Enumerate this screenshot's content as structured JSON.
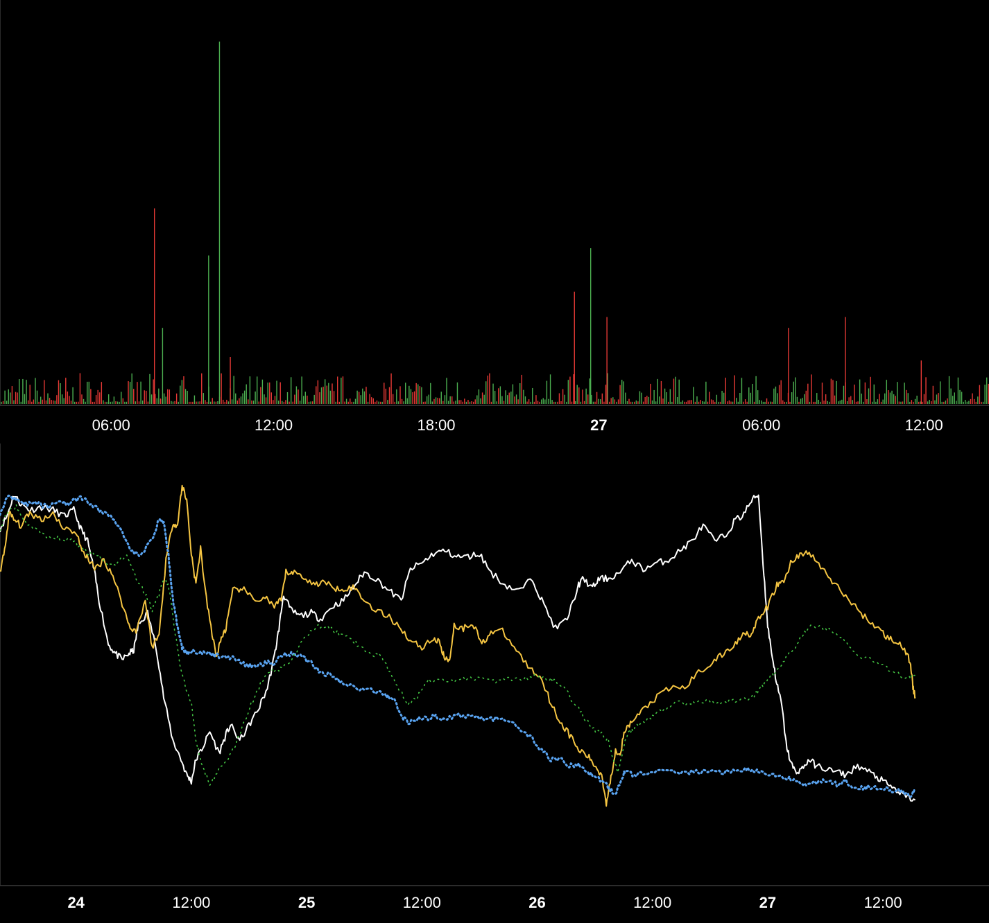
{
  "chart_data": [
    {
      "type": "bar",
      "title": "",
      "xlabel": "",
      "ylabel": "",
      "x_ticks": [
        {
          "label": "06:00",
          "major": false,
          "hours": 6
        },
        {
          "label": "12:00",
          "major": false,
          "hours": 12
        },
        {
          "label": "18:00",
          "major": false,
          "hours": 18
        },
        {
          "label": "27",
          "major": true,
          "hours": 24
        },
        {
          "label": "06:00",
          "major": false,
          "hours": 30
        },
        {
          "label": "12:00",
          "major": false,
          "hours": 36
        }
      ],
      "x_range_hours": [
        1.9,
        38.4
      ],
      "ylim": [
        0,
        100
      ],
      "grid": false,
      "colors": {
        "up": "#4caf50",
        "down": "#e53935"
      },
      "notable_bars": [
        {
          "hours": 7.6,
          "value": 54,
          "direction": "down"
        },
        {
          "hours": 7.9,
          "value": 21,
          "direction": "up"
        },
        {
          "hours": 9.6,
          "value": 41,
          "direction": "up"
        },
        {
          "hours": 10.0,
          "value": 100,
          "direction": "up"
        },
        {
          "hours": 10.4,
          "value": 13,
          "direction": "down"
        },
        {
          "hours": 23.1,
          "value": 31,
          "direction": "down"
        },
        {
          "hours": 23.7,
          "value": 43,
          "direction": "up"
        },
        {
          "hours": 24.3,
          "value": 24,
          "direction": "down"
        },
        {
          "hours": 31.0,
          "value": 21,
          "direction": "down"
        },
        {
          "hours": 33.1,
          "value": 24,
          "direction": "down"
        },
        {
          "hours": 35.9,
          "value": 12,
          "direction": "down"
        }
      ]
    },
    {
      "type": "line",
      "title": "",
      "xlabel": "",
      "ylabel": "",
      "x_ticks": [
        {
          "label": "24",
          "major": true,
          "days": 1
        },
        {
          "label": "12:00",
          "major": false,
          "days": 1.5
        },
        {
          "label": "25",
          "major": true,
          "days": 2
        },
        {
          "label": "12:00",
          "major": false,
          "days": 2.5
        },
        {
          "label": "26",
          "major": true,
          "days": 3
        },
        {
          "label": "12:00",
          "major": false,
          "days": 3.5
        },
        {
          "label": "27",
          "major": true,
          "days": 4
        },
        {
          "label": "12:00",
          "major": false,
          "days": 4.5
        }
      ],
      "x_range_days": [
        0.67,
        4.96
      ],
      "ylim": [
        0,
        100
      ],
      "grid": false,
      "series": [
        {
          "color": "#ffffff",
          "style": "solid",
          "x": [
            0.67,
            0.7,
            0.73,
            0.76,
            0.8,
            0.85,
            0.9,
            0.95,
            0.99,
            1.02,
            1.05,
            1.08,
            1.1,
            1.14,
            1.17,
            1.2,
            1.23,
            1.25,
            1.27,
            1.31,
            1.35,
            1.38,
            1.42,
            1.45,
            1.48,
            1.5,
            1.52,
            1.55,
            1.58,
            1.62,
            1.65,
            1.67,
            1.71,
            1.75,
            1.79,
            1.83,
            1.86,
            1.88,
            1.9,
            1.93,
            1.97,
            2.02,
            2.06,
            2.11,
            2.16,
            2.21,
            2.25,
            2.3,
            2.36,
            2.41,
            2.45,
            2.5,
            2.55,
            2.6,
            2.65,
            2.7,
            2.75,
            2.8,
            2.86,
            2.92,
            2.98,
            3.02,
            3.08,
            3.13,
            3.18,
            3.2,
            3.24,
            3.27,
            3.31,
            3.36,
            3.41,
            3.46,
            3.52,
            3.57,
            3.62,
            3.67,
            3.72,
            3.77,
            3.82,
            3.86,
            3.89,
            3.93,
            3.96,
            3.98,
            4.0,
            4.02,
            4.04,
            4.06,
            4.08,
            4.1,
            4.12,
            4.15,
            4.18,
            4.21,
            4.25,
            4.3,
            4.34,
            4.39,
            4.44,
            4.48,
            4.52,
            4.56,
            4.6,
            4.64
          ],
          "y": [
            86,
            90,
            97,
            94,
            92,
            93,
            92,
            90,
            92,
            86,
            82,
            72,
            63,
            49,
            46,
            44,
            46,
            47,
            55,
            59,
            47,
            32,
            18,
            13,
            7,
            5,
            12,
            16,
            21,
            14,
            20,
            23,
            18,
            23,
            28,
            35,
            45,
            54,
            65,
            60,
            58,
            59,
            57,
            61,
            63,
            68,
            72,
            70,
            66,
            63,
            73,
            75,
            78,
            79,
            77,
            77,
            78,
            72,
            68,
            66,
            70,
            63,
            54,
            57,
            68,
            70,
            67,
            70,
            70,
            72,
            76,
            73,
            75,
            76,
            79,
            82,
            87,
            82,
            84,
            89,
            90,
            95,
            97,
            75,
            55,
            45,
            36,
            30,
            17,
            11,
            8,
            9,
            12,
            10,
            9,
            8,
            7,
            10,
            8,
            6,
            4,
            2,
            0,
            -1
          ]
        },
        {
          "color": "#f5c542",
          "style": "solid",
          "x": [
            0.67,
            0.69,
            0.71,
            0.73,
            0.76,
            0.8,
            0.85,
            0.9,
            0.95,
            1.0,
            1.03,
            1.05,
            1.08,
            1.12,
            1.16,
            1.2,
            1.23,
            1.26,
            1.3,
            1.33,
            1.36,
            1.39,
            1.42,
            1.44,
            1.46,
            1.48,
            1.5,
            1.52,
            1.54,
            1.56,
            1.59,
            1.61,
            1.63,
            1.65,
            1.68,
            1.72,
            1.77,
            1.82,
            1.86,
            1.89,
            1.91,
            1.94,
            1.98,
            2.03,
            2.07,
            2.12,
            2.16,
            2.21,
            2.25,
            2.3,
            2.35,
            2.4,
            2.45,
            2.5,
            2.55,
            2.58,
            2.6,
            2.62,
            2.64,
            2.68,
            2.72,
            2.76,
            2.8,
            2.85,
            2.91,
            2.97,
            3.02,
            3.06,
            3.1,
            3.14,
            3.18,
            3.22,
            3.25,
            3.28,
            3.3,
            3.32,
            3.34,
            3.36,
            3.38,
            3.41,
            3.46,
            3.52,
            3.58,
            3.64,
            3.7,
            3.76,
            3.81,
            3.86,
            3.9,
            3.93,
            3.96,
            4.0,
            4.04,
            4.07,
            4.1,
            4.14,
            4.18,
            4.23,
            4.28,
            4.33,
            4.38,
            4.43,
            4.48,
            4.52,
            4.56,
            4.6,
            4.62,
            4.63,
            4.64
          ],
          "y": [
            72,
            79,
            91,
            89,
            87,
            91,
            89,
            91,
            86,
            85,
            78,
            77,
            73,
            76,
            71,
            62,
            55,
            53,
            63,
            48,
            52,
            76,
            88,
            87,
            100,
            95,
            78,
            68,
            80,
            66,
            52,
            45,
            51,
            54,
            66,
            67,
            63,
            64,
            61,
            63,
            72,
            72,
            71,
            68,
            69,
            67,
            67,
            67,
            63,
            60,
            58,
            55,
            50,
            48,
            51,
            49,
            44,
            44,
            55,
            54,
            56,
            49,
            53,
            53,
            47,
            41,
            38,
            30,
            24,
            20,
            15,
            13,
            10,
            7,
            -2,
            6,
            15,
            14,
            21,
            24,
            28,
            32,
            35,
            35,
            40,
            43,
            46,
            49,
            53,
            52,
            57,
            61,
            68,
            69,
            75,
            78,
            78,
            74,
            69,
            65,
            61,
            57,
            54,
            51,
            50,
            46,
            43,
            35,
            32
          ]
        },
        {
          "color": "#59a3f0",
          "style": "dotted",
          "x": [
            0.67,
            0.7,
            0.74,
            0.78,
            0.83,
            0.88,
            0.93,
            0.97,
            1.02,
            1.06,
            1.1,
            1.15,
            1.2,
            1.24,
            1.28,
            1.33,
            1.36,
            1.38,
            1.4,
            1.42,
            1.44,
            1.46,
            1.48,
            1.5,
            1.54,
            1.58,
            1.62,
            1.66,
            1.7,
            1.74,
            1.78,
            1.82,
            1.86,
            1.9,
            1.94,
            1.98,
            2.02,
            2.06,
            2.11,
            2.16,
            2.22,
            2.28,
            2.34,
            2.38,
            2.41,
            2.44,
            2.48,
            2.52,
            2.56,
            2.6,
            2.66,
            2.72,
            2.78,
            2.84,
            2.9,
            2.96,
            3.02,
            3.06,
            3.1,
            3.14,
            3.18,
            3.22,
            3.26,
            3.3,
            3.32,
            3.34,
            3.36,
            3.38,
            3.42,
            3.48,
            3.54,
            3.6,
            3.66,
            3.72,
            3.78,
            3.84,
            3.9,
            3.94,
            3.98,
            4.02,
            4.06,
            4.1,
            4.14,
            4.18,
            4.22,
            4.26,
            4.3,
            4.34,
            4.38,
            4.42,
            4.46,
            4.5,
            4.54,
            4.58,
            4.62,
            4.64
          ],
          "y": [
            91,
            96,
            96,
            94,
            94,
            93,
            95,
            94,
            96,
            94,
            92,
            90,
            85,
            79,
            77,
            83,
            89,
            88,
            78,
            63,
            55,
            48,
            46,
            47,
            46,
            46,
            45,
            45,
            44,
            42,
            42,
            43,
            43,
            46,
            46,
            45,
            43,
            40,
            39,
            36,
            35,
            34,
            33,
            31,
            26,
            24,
            25,
            25,
            26,
            25,
            26,
            26,
            25,
            25,
            23,
            20,
            15,
            12,
            12,
            10,
            10,
            8,
            6,
            4,
            2,
            1,
            5,
            8,
            7,
            8,
            8,
            8,
            8,
            8,
            8,
            8,
            9,
            8,
            8,
            7,
            6,
            6,
            4,
            4,
            5,
            5,
            4,
            5,
            3,
            3,
            3,
            3,
            2,
            2,
            0,
            2
          ]
        },
        {
          "color": "#43c443",
          "style": "sparse-dotted",
          "x": [
            0.67,
            0.7,
            0.74,
            0.78,
            0.83,
            0.88,
            0.93,
            0.98,
            1.02,
            1.06,
            1.1,
            1.14,
            1.18,
            1.22,
            1.26,
            1.3,
            1.33,
            1.36,
            1.38,
            1.4,
            1.42,
            1.45,
            1.48,
            1.5,
            1.52,
            1.54,
            1.56,
            1.58,
            1.61,
            1.64,
            1.68,
            1.72,
            1.76,
            1.8,
            1.84,
            1.88,
            1.91,
            1.95,
            2.0,
            2.05,
            2.1,
            2.15,
            2.2,
            2.24,
            2.28,
            2.32,
            2.36,
            2.4,
            2.44,
            2.48,
            2.52,
            2.58,
            2.64,
            2.7,
            2.76,
            2.82,
            2.88,
            2.94,
            3.0,
            3.04,
            3.08,
            3.12,
            3.16,
            3.2,
            3.24,
            3.28,
            3.31,
            3.33,
            3.35,
            3.37,
            3.39,
            3.42,
            3.46,
            3.5,
            3.55,
            3.6,
            3.65,
            3.7,
            3.75,
            3.8,
            3.85,
            3.9,
            3.94,
            3.97,
            4.0,
            4.04,
            4.08,
            4.12,
            4.16,
            4.2,
            4.25,
            4.3,
            4.35,
            4.4,
            4.45,
            4.5,
            4.55,
            4.6,
            4.64
          ],
          "y": [
            86,
            91,
            93,
            88,
            86,
            83,
            83,
            82,
            80,
            78,
            77,
            74,
            75,
            78,
            70,
            65,
            60,
            65,
            70,
            68,
            58,
            42,
            34,
            30,
            18,
            12,
            8,
            4,
            8,
            10,
            15,
            22,
            30,
            36,
            40,
            41,
            42,
            46,
            52,
            55,
            54,
            52,
            50,
            48,
            45,
            46,
            40,
            35,
            30,
            32,
            37,
            38,
            37,
            38,
            38,
            37,
            38,
            38,
            39,
            38,
            37,
            35,
            30,
            26,
            22,
            20,
            18,
            12,
            8,
            14,
            20,
            22,
            24,
            26,
            28,
            30,
            30,
            30,
            31,
            30,
            31,
            31,
            32,
            35,
            38,
            40,
            45,
            48,
            53,
            55,
            54,
            52,
            49,
            45,
            44,
            42,
            40,
            38,
            39
          ]
        }
      ]
    }
  ]
}
